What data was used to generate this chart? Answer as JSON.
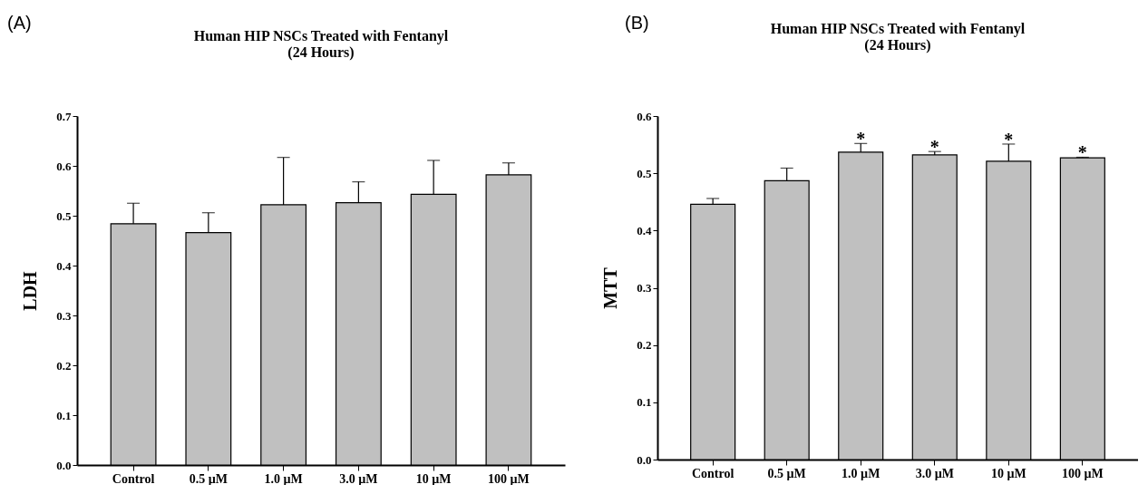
{
  "chart_data": [
    {
      "type": "bar",
      "title": "Human HIP NSCs Treated with Fentanyl",
      "subtitle": "(24 Hours)",
      "ylabel": "LDH",
      "categories": [
        "Control",
        "0.5 µM",
        "1.0 µM",
        "3.0 µM",
        "10 µM",
        "100 µM"
      ],
      "values": [
        0.484,
        0.466,
        0.522,
        0.526,
        0.543,
        0.582
      ],
      "color": "#c0c0c0",
      "errors": [
        [
          0.484,
          0.525
        ],
        [
          0.466,
          0.506
        ],
        [
          0.522,
          0.617
        ],
        [
          0.526,
          0.568
        ],
        [
          0.543,
          0.611
        ],
        [
          0.582,
          0.606
        ]
      ],
      "ylim": [
        0,
        0.7
      ],
      "yticks": [
        {
          "value": 0,
          "label": "0.0"
        },
        0.1,
        0.2,
        0.3,
        0.4,
        0.5,
        0.6,
        0.7
      ],
      "annotations": [
        "(A)"
      ]
    },
    {
      "type": "bar",
      "title": "Human HIP NSCs Treated with Fentanyl",
      "subtitle": "(24 Hours)",
      "ylabel": "MTT",
      "categories": [
        "Control",
        "0.5 µM",
        "1.0 µM",
        "3.0 µM",
        "10 µM",
        "100 µM"
      ],
      "values": [
        0.446,
        0.487,
        0.537,
        0.532,
        0.521,
        0.527
      ],
      "color": "#c0c0c0",
      "errors": [
        [
          0.446,
          0.456
        ],
        [
          0.487,
          0.509
        ],
        [
          0.537,
          0.552
        ],
        [
          0.532,
          0.538
        ],
        [
          0.521,
          0.551
        ],
        [
          0.527,
          0.528
        ]
      ],
      "ylim": [
        0,
        0.6
      ],
      "yticks": [
        {
          "value": 0,
          "label": "0.0"
        },
        0.1,
        0.2,
        0.3,
        0.4,
        0.5,
        0.6
      ],
      "annotations": [
        "(B)",
        {
          "text": "*",
          "x": "1.0 µM",
          "y": 0.552
        },
        {
          "text": "*",
          "x": "3.0 µM",
          "y": 0.538
        },
        {
          "text": "*",
          "x": "10 µM",
          "y": 0.551
        },
        {
          "text": "*",
          "x": "100 µM",
          "y": 0.528
        }
      ]
    }
  ]
}
